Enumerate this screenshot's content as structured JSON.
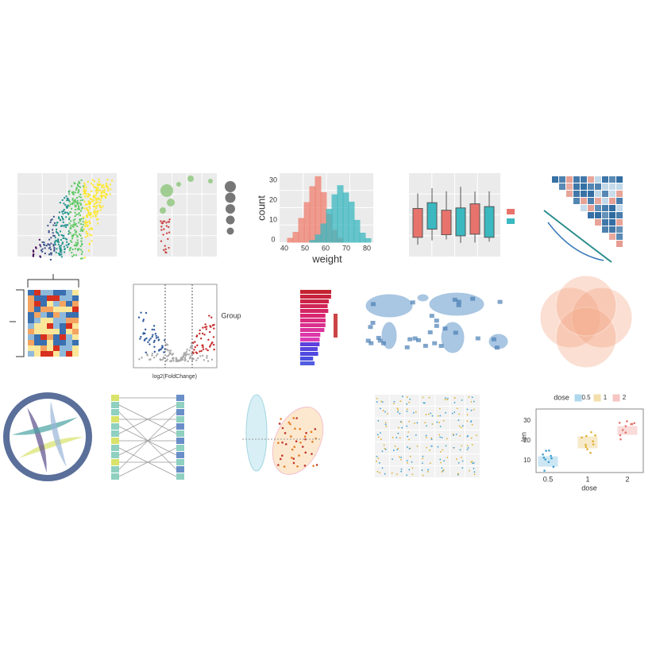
{
  "histogram": {
    "y_label": "count",
    "x_label": "weight",
    "xticks": [
      "40",
      "50",
      "60",
      "70",
      "80"
    ],
    "yticks": [
      "0",
      "10",
      "20",
      "30"
    ]
  },
  "volcano": {
    "legend_title": "Group",
    "x_label": "log2(FoldChange)"
  },
  "dose_plot": {
    "legend_title": "dose",
    "legend_items": [
      "0.5",
      "1",
      "2"
    ],
    "x_label": "dose",
    "y_label": "len",
    "xticks": [
      "0.5",
      "1",
      "2"
    ],
    "yticks": [
      "10",
      "20",
      "30"
    ]
  }
}
